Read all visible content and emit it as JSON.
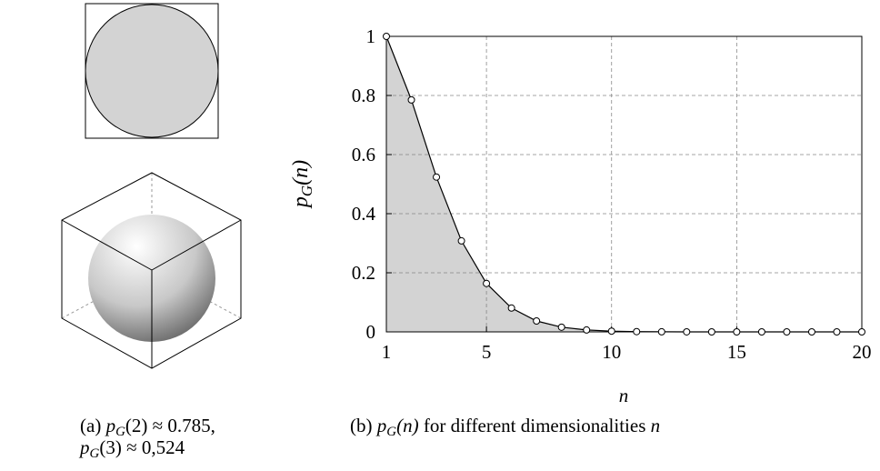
{
  "chart_data": {
    "type": "line",
    "x": [
      1,
      2,
      3,
      4,
      5,
      6,
      7,
      8,
      9,
      10,
      11,
      12,
      13,
      14,
      15,
      16,
      17,
      18,
      19,
      20
    ],
    "values": [
      1,
      0.785,
      0.524,
      0.308,
      0.164,
      0.0807,
      0.0369,
      0.0159,
      0.00644,
      0.00249,
      0.000911,
      0.000315,
      0.000104,
      3.3e-05,
      1e-05,
      2.9e-06,
      8e-07,
      2e-07,
      5e-08,
      1e-08
    ],
    "color": "#000000",
    "fill_color": "#d3d3d3",
    "fill": true,
    "xlim": [
      1,
      20
    ],
    "xticks": [
      1,
      5,
      10,
      15,
      20
    ],
    "ylim": [
      0,
      1
    ],
    "yticks": [
      0,
      0.2,
      0.4,
      0.6,
      0.8,
      1
    ],
    "grid": true,
    "xlabel": "n",
    "ylabel": {
      "symbol": "p",
      "sub": "G",
      "arg": "(n)"
    }
  },
  "caption_a": {
    "line1": {
      "prefix": "(a) ",
      "symbol": "p",
      "sub": "G",
      "rest": "(2) ≈ 0.785,"
    },
    "line2": {
      "symbol": "p",
      "sub": "G",
      "rest": "(3) ≈ 0,524"
    }
  },
  "caption_b": {
    "prefix": "(b) ",
    "symbol": "p",
    "sub": "G",
    "arg": "(n)",
    "rest": " for different dimensionalities ",
    "var": "n"
  }
}
